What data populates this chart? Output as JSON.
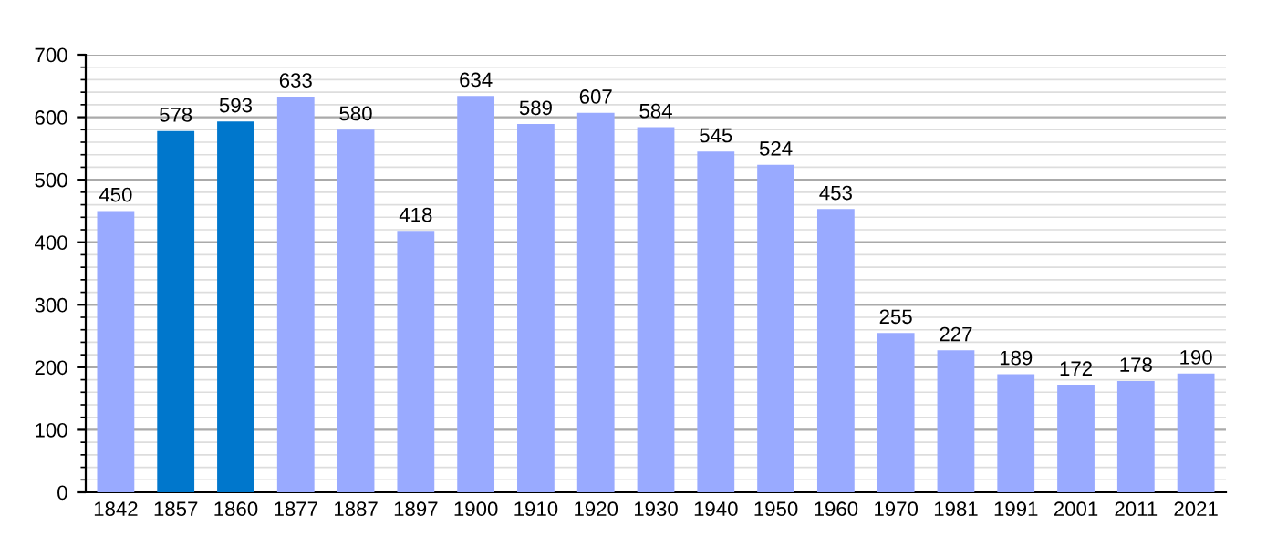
{
  "chart_data": {
    "type": "bar",
    "categories": [
      "1842",
      "1857",
      "1860",
      "1877",
      "1887",
      "1897",
      "1900",
      "1910",
      "1920",
      "1930",
      "1940",
      "1950",
      "1960",
      "1970",
      "1981",
      "1991",
      "2001",
      "2011",
      "2021"
    ],
    "values": [
      450,
      578,
      593,
      633,
      580,
      418,
      634,
      589,
      607,
      584,
      545,
      524,
      453,
      255,
      227,
      189,
      172,
      178,
      190
    ],
    "colors": [
      "#99aaff",
      "#0077cc",
      "#0077cc",
      "#99aaff",
      "#99aaff",
      "#99aaff",
      "#99aaff",
      "#99aaff",
      "#99aaff",
      "#99aaff",
      "#99aaff",
      "#99aaff",
      "#99aaff",
      "#99aaff",
      "#99aaff",
      "#99aaff",
      "#99aaff",
      "#99aaff",
      "#99aaff"
    ],
    "ylim": [
      0,
      700
    ],
    "yticks": [
      0,
      100,
      200,
      300,
      400,
      500,
      600,
      700
    ],
    "grid": "y",
    "data_labels": true,
    "legend": false
  }
}
